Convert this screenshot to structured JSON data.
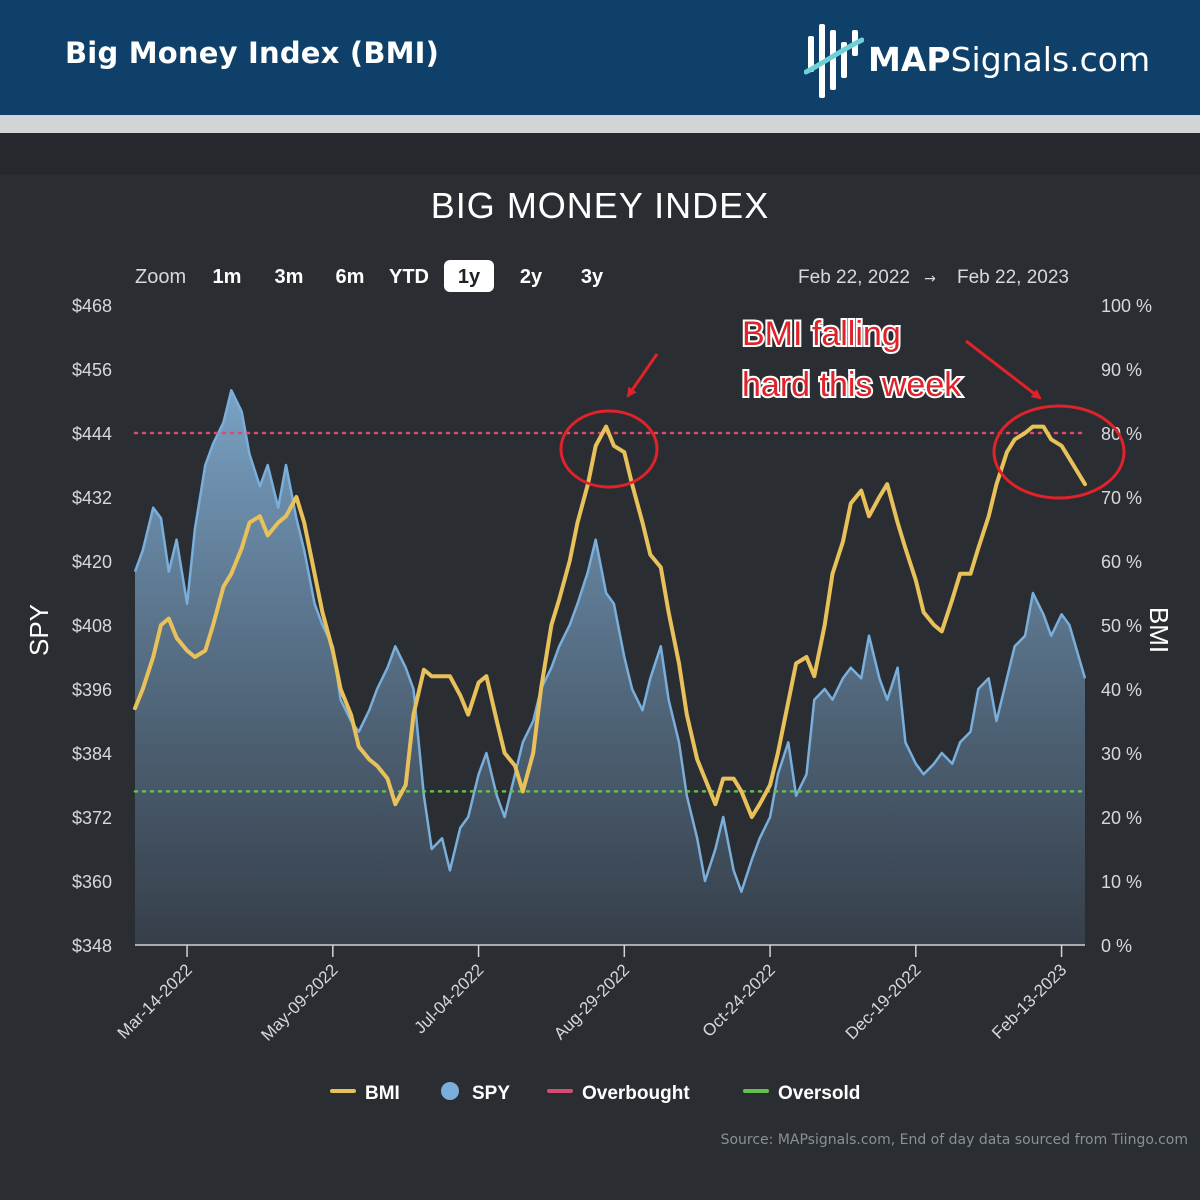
{
  "header": {
    "title": "Big Money Index (BMI)",
    "logo_bold": "MAP",
    "logo_rest": "Signals.com"
  },
  "chart_data": {
    "type": "line",
    "title": "BIG MONEY INDEX",
    "zoom": {
      "label": "Zoom",
      "options": [
        "1m",
        "3m",
        "6m",
        "YTD",
        "1y",
        "2y",
        "3y"
      ],
      "selected": "1y"
    },
    "range": {
      "from": "Feb 22, 2022",
      "arrow": "→",
      "to": "Feb 22, 2023"
    },
    "left_axis": {
      "label": "SPY",
      "min": 348,
      "max": 468,
      "ticks": [
        "$468",
        "$456",
        "$444",
        "$432",
        "$420",
        "$408",
        "$396",
        "$384",
        "$372",
        "$360",
        "$348"
      ]
    },
    "right_axis": {
      "label": "BMI",
      "min": 0,
      "max": 100,
      "ticks": [
        "100 %",
        "90 %",
        "80 %",
        "70 %",
        "60 %",
        "50 %",
        "40 %",
        "30 %",
        "20 %",
        "10 %",
        "0 %"
      ]
    },
    "x_axis": {
      "start": "2022-02-22",
      "end": "2023-02-22",
      "ticks": [
        "Mar-14-2022",
        "May-09-2022",
        "Jul-04-2022",
        "Aug-29-2022",
        "Oct-24-2022",
        "Dec-19-2022",
        "Feb-13-2023"
      ]
    },
    "overbought": 80,
    "oversold": 24,
    "series": [
      {
        "name": "BMI",
        "color": "#e8c15a",
        "points": [
          [
            "2022-02-22",
            37
          ],
          [
            "2022-02-25",
            40
          ],
          [
            "2022-03-01",
            45
          ],
          [
            "2022-03-04",
            50
          ],
          [
            "2022-03-07",
            51
          ],
          [
            "2022-03-10",
            48
          ],
          [
            "2022-03-14",
            46
          ],
          [
            "2022-03-17",
            45
          ],
          [
            "2022-03-21",
            46
          ],
          [
            "2022-03-24",
            50
          ],
          [
            "2022-03-28",
            56
          ],
          [
            "2022-03-31",
            58
          ],
          [
            "2022-04-04",
            62
          ],
          [
            "2022-04-07",
            66
          ],
          [
            "2022-04-11",
            67
          ],
          [
            "2022-04-14",
            64
          ],
          [
            "2022-04-18",
            66
          ],
          [
            "2022-04-21",
            67
          ],
          [
            "2022-04-25",
            70
          ],
          [
            "2022-04-28",
            66
          ],
          [
            "2022-05-02",
            58
          ],
          [
            "2022-05-05",
            52
          ],
          [
            "2022-05-09",
            46
          ],
          [
            "2022-05-12",
            40
          ],
          [
            "2022-05-16",
            36
          ],
          [
            "2022-05-19",
            31
          ],
          [
            "2022-05-23",
            29
          ],
          [
            "2022-05-26",
            28
          ],
          [
            "2022-05-30",
            26
          ],
          [
            "2022-06-02",
            22
          ],
          [
            "2022-06-06",
            25
          ],
          [
            "2022-06-09",
            36
          ],
          [
            "2022-06-13",
            43
          ],
          [
            "2022-06-16",
            42
          ],
          [
            "2022-06-20",
            42
          ],
          [
            "2022-06-23",
            42
          ],
          [
            "2022-06-27",
            39
          ],
          [
            "2022-06-30",
            36
          ],
          [
            "2022-07-04",
            41
          ],
          [
            "2022-07-07",
            42
          ],
          [
            "2022-07-11",
            35
          ],
          [
            "2022-07-14",
            30
          ],
          [
            "2022-07-18",
            28
          ],
          [
            "2022-07-21",
            24
          ],
          [
            "2022-07-25",
            30
          ],
          [
            "2022-07-28",
            40
          ],
          [
            "2022-08-01",
            50
          ],
          [
            "2022-08-04",
            54
          ],
          [
            "2022-08-08",
            60
          ],
          [
            "2022-08-11",
            66
          ],
          [
            "2022-08-15",
            72
          ],
          [
            "2022-08-18",
            78
          ],
          [
            "2022-08-22",
            81
          ],
          [
            "2022-08-25",
            78
          ],
          [
            "2022-08-29",
            77
          ],
          [
            "2022-09-01",
            72
          ],
          [
            "2022-09-05",
            66
          ],
          [
            "2022-09-08",
            61
          ],
          [
            "2022-09-12",
            59
          ],
          [
            "2022-09-15",
            52
          ],
          [
            "2022-09-19",
            44
          ],
          [
            "2022-09-22",
            36
          ],
          [
            "2022-09-26",
            29
          ],
          [
            "2022-09-29",
            26
          ],
          [
            "2022-10-03",
            22
          ],
          [
            "2022-10-06",
            26
          ],
          [
            "2022-10-10",
            26
          ],
          [
            "2022-10-13",
            24
          ],
          [
            "2022-10-17",
            20
          ],
          [
            "2022-10-20",
            22
          ],
          [
            "2022-10-24",
            25
          ],
          [
            "2022-10-27",
            30
          ],
          [
            "2022-10-31",
            38
          ],
          [
            "2022-11-03",
            44
          ],
          [
            "2022-11-07",
            45
          ],
          [
            "2022-11-10",
            42
          ],
          [
            "2022-11-14",
            50
          ],
          [
            "2022-11-17",
            58
          ],
          [
            "2022-11-21",
            63
          ],
          [
            "2022-11-24",
            69
          ],
          [
            "2022-11-28",
            71
          ],
          [
            "2022-12-01",
            67
          ],
          [
            "2022-12-05",
            70
          ],
          [
            "2022-12-08",
            72
          ],
          [
            "2022-12-12",
            66
          ],
          [
            "2022-12-15",
            62
          ],
          [
            "2022-12-19",
            57
          ],
          [
            "2022-12-22",
            52
          ],
          [
            "2022-12-26",
            50
          ],
          [
            "2022-12-29",
            49
          ],
          [
            "2023-01-02",
            54
          ],
          [
            "2023-01-05",
            58
          ],
          [
            "2023-01-09",
            58
          ],
          [
            "2023-01-12",
            62
          ],
          [
            "2023-01-16",
            67
          ],
          [
            "2023-01-19",
            72
          ],
          [
            "2023-01-23",
            77
          ],
          [
            "2023-01-26",
            79
          ],
          [
            "2023-01-30",
            80
          ],
          [
            "2023-02-02",
            81
          ],
          [
            "2023-02-06",
            81
          ],
          [
            "2023-02-09",
            79
          ],
          [
            "2023-02-13",
            78
          ],
          [
            "2023-02-16",
            76
          ],
          [
            "2023-02-22",
            72
          ]
        ]
      },
      {
        "name": "SPY",
        "color": "#7aaedb",
        "points": [
          [
            "2022-02-22",
            418
          ],
          [
            "2022-02-25",
            422
          ],
          [
            "2022-03-01",
            430
          ],
          [
            "2022-03-04",
            428
          ],
          [
            "2022-03-07",
            418
          ],
          [
            "2022-03-10",
            424
          ],
          [
            "2022-03-14",
            412
          ],
          [
            "2022-03-17",
            426
          ],
          [
            "2022-03-21",
            438
          ],
          [
            "2022-03-24",
            442
          ],
          [
            "2022-03-28",
            446
          ],
          [
            "2022-03-31",
            452
          ],
          [
            "2022-04-04",
            448
          ],
          [
            "2022-04-07",
            440
          ],
          [
            "2022-04-11",
            434
          ],
          [
            "2022-04-14",
            438
          ],
          [
            "2022-04-18",
            430
          ],
          [
            "2022-04-21",
            438
          ],
          [
            "2022-04-25",
            428
          ],
          [
            "2022-04-28",
            422
          ],
          [
            "2022-05-02",
            412
          ],
          [
            "2022-05-05",
            408
          ],
          [
            "2022-05-09",
            404
          ],
          [
            "2022-05-12",
            394
          ],
          [
            "2022-05-16",
            390
          ],
          [
            "2022-05-19",
            388
          ],
          [
            "2022-05-23",
            392
          ],
          [
            "2022-05-26",
            396
          ],
          [
            "2022-05-30",
            400
          ],
          [
            "2022-06-02",
            404
          ],
          [
            "2022-06-06",
            400
          ],
          [
            "2022-06-09",
            396
          ],
          [
            "2022-06-13",
            376
          ],
          [
            "2022-06-16",
            366
          ],
          [
            "2022-06-20",
            368
          ],
          [
            "2022-06-23",
            362
          ],
          [
            "2022-06-27",
            370
          ],
          [
            "2022-06-30",
            372
          ],
          [
            "2022-07-04",
            380
          ],
          [
            "2022-07-07",
            384
          ],
          [
            "2022-07-11",
            376
          ],
          [
            "2022-07-14",
            372
          ],
          [
            "2022-07-18",
            380
          ],
          [
            "2022-07-21",
            386
          ],
          [
            "2022-07-25",
            390
          ],
          [
            "2022-07-28",
            396
          ],
          [
            "2022-08-01",
            400
          ],
          [
            "2022-08-04",
            404
          ],
          [
            "2022-08-08",
            408
          ],
          [
            "2022-08-11",
            412
          ],
          [
            "2022-08-15",
            418
          ],
          [
            "2022-08-18",
            424
          ],
          [
            "2022-08-22",
            414
          ],
          [
            "2022-08-25",
            412
          ],
          [
            "2022-08-29",
            402
          ],
          [
            "2022-09-01",
            396
          ],
          [
            "2022-09-05",
            392
          ],
          [
            "2022-09-08",
            398
          ],
          [
            "2022-09-12",
            404
          ],
          [
            "2022-09-15",
            394
          ],
          [
            "2022-09-19",
            386
          ],
          [
            "2022-09-22",
            376
          ],
          [
            "2022-09-26",
            368
          ],
          [
            "2022-09-29",
            360
          ],
          [
            "2022-10-03",
            366
          ],
          [
            "2022-10-06",
            372
          ],
          [
            "2022-10-10",
            362
          ],
          [
            "2022-10-13",
            358
          ],
          [
            "2022-10-17",
            364
          ],
          [
            "2022-10-20",
            368
          ],
          [
            "2022-10-24",
            372
          ],
          [
            "2022-10-27",
            380
          ],
          [
            "2022-10-31",
            386
          ],
          [
            "2022-11-03",
            376
          ],
          [
            "2022-11-07",
            380
          ],
          [
            "2022-11-10",
            394
          ],
          [
            "2022-11-14",
            396
          ],
          [
            "2022-11-17",
            394
          ],
          [
            "2022-11-21",
            398
          ],
          [
            "2022-11-24",
            400
          ],
          [
            "2022-11-28",
            398
          ],
          [
            "2022-12-01",
            406
          ],
          [
            "2022-12-05",
            398
          ],
          [
            "2022-12-08",
            394
          ],
          [
            "2022-12-12",
            400
          ],
          [
            "2022-12-15",
            386
          ],
          [
            "2022-12-19",
            382
          ],
          [
            "2022-12-22",
            380
          ],
          [
            "2022-12-26",
            382
          ],
          [
            "2022-12-29",
            384
          ],
          [
            "2023-01-02",
            382
          ],
          [
            "2023-01-05",
            386
          ],
          [
            "2023-01-09",
            388
          ],
          [
            "2023-01-12",
            396
          ],
          [
            "2023-01-16",
            398
          ],
          [
            "2023-01-19",
            390
          ],
          [
            "2023-01-23",
            398
          ],
          [
            "2023-01-26",
            404
          ],
          [
            "2023-01-30",
            406
          ],
          [
            "2023-02-02",
            414
          ],
          [
            "2023-02-06",
            410
          ],
          [
            "2023-02-09",
            406
          ],
          [
            "2023-02-13",
            410
          ],
          [
            "2023-02-16",
            408
          ],
          [
            "2023-02-22",
            398
          ]
        ]
      }
    ],
    "legend": {
      "placement": "bottom",
      "items": [
        {
          "label": "BMI",
          "color": "#e8c15a",
          "symbol": "line"
        },
        {
          "label": "SPY",
          "color": "#7aaedb",
          "symbol": "dot"
        },
        {
          "label": "Overbought",
          "color": "#d84d6e",
          "symbol": "line"
        },
        {
          "label": "Oversold",
          "color": "#65c14e",
          "symbol": "line"
        }
      ]
    },
    "annotations": [
      {
        "text_lines": [
          "BMI falling",
          "hard this week"
        ],
        "color": "#e0222a"
      }
    ],
    "source": "Source: MAPsignals.com, End of day data sourced from Tiingo.com"
  }
}
